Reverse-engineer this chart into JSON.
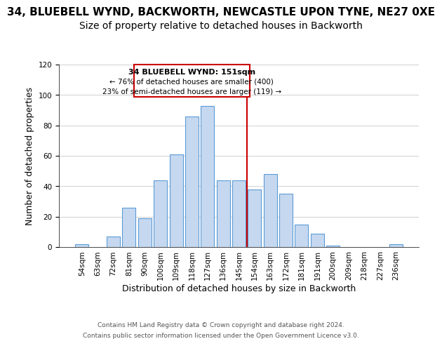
{
  "title": "34, BLUEBELL WYND, BACKWORTH, NEWCASTLE UPON TYNE, NE27 0XE",
  "subtitle": "Size of property relative to detached houses in Backworth",
  "xlabel": "Distribution of detached houses by size in Backworth",
  "ylabel": "Number of detached properties",
  "bar_labels": [
    "54sqm",
    "63sqm",
    "72sqm",
    "81sqm",
    "90sqm",
    "100sqm",
    "109sqm",
    "118sqm",
    "127sqm",
    "136sqm",
    "145sqm",
    "154sqm",
    "163sqm",
    "172sqm",
    "181sqm",
    "191sqm",
    "200sqm",
    "209sqm",
    "218sqm",
    "227sqm",
    "236sqm"
  ],
  "bar_values": [
    2,
    0,
    7,
    26,
    19,
    44,
    61,
    86,
    93,
    44,
    44,
    38,
    48,
    35,
    15,
    9,
    1,
    0,
    0,
    0,
    2
  ],
  "bar_color": "#c5d8f0",
  "bar_edge_color": "#5b9bd5",
  "annotation_title": "34 BLUEBELL WYND: 151sqm",
  "annotation_line1": "← 76% of detached houses are smaller (400)",
  "annotation_line2": "23% of semi-detached houses are larger (119) →",
  "annotation_box_color": "#ffffff",
  "annotation_box_edge": "#cc0000",
  "marker_color": "#cc0000",
  "ylim": [
    0,
    120
  ],
  "yticks": [
    0,
    20,
    40,
    60,
    80,
    100,
    120
  ],
  "footer_line1": "Contains HM Land Registry data © Crown copyright and database right 2024.",
  "footer_line2": "Contains public sector information licensed under the Open Government Licence v3.0.",
  "bg_color": "#ffffff",
  "grid_color": "#d0d0d0",
  "title_fontsize": 11,
  "subtitle_fontsize": 10,
  "axis_label_fontsize": 9,
  "tick_fontsize": 7.5,
  "footer_fontsize": 6.5
}
